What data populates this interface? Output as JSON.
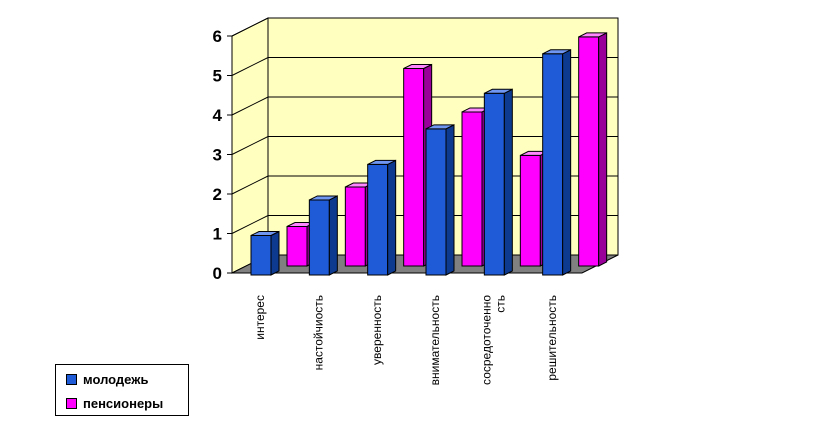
{
  "chart_data": {
    "type": "bar",
    "categories": [
      "интерес",
      "настойчиость",
      "уверенность",
      "внимательность",
      "сосредоточенно ость",
      "решительность"
    ],
    "category_lines": [
      [
        "интерес"
      ],
      [
        "настойчиость"
      ],
      [
        "уверенность"
      ],
      [
        "внимательность"
      ],
      [
        "сосредоточенно",
        "сть"
      ],
      [
        "решительность"
      ]
    ],
    "series": [
      {
        "name": "молодежь",
        "values": [
          1,
          1.9,
          2.8,
          3.7,
          4.6,
          5.6
        ],
        "color": "#1f5bd6",
        "side": "#0d3a8f",
        "top": "#6f97f2"
      },
      {
        "name": "пенсионеры",
        "values": [
          1,
          2,
          5,
          3.9,
          2.8,
          5.8
        ],
        "color": "#ff00ff",
        "side": "#990099",
        "top": "#ff88ff"
      }
    ],
    "ylim": [
      0,
      6
    ],
    "yticks": [
      0,
      1,
      2,
      3,
      4,
      5,
      6
    ],
    "grid": true,
    "legend": "bottom-left",
    "wall_color": "#ffffc0",
    "floor_color": "#808080"
  }
}
